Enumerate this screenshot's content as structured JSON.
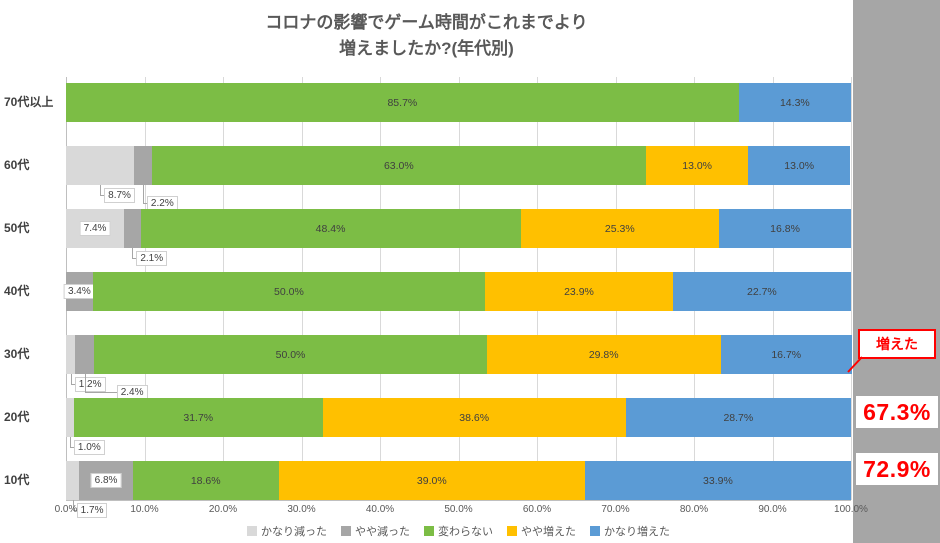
{
  "chart_data": {
    "type": "bar",
    "orientation": "horizontal",
    "stacked": true,
    "title": "コロナの影響でゲーム時間がこれまでより\n増えましたか?(年代別)",
    "xlim": [
      0,
      100
    ],
    "xticks": [
      "0.0%",
      "10.0%",
      "20.0%",
      "30.0%",
      "40.0%",
      "50.0%",
      "60.0%",
      "70.0%",
      "80.0%",
      "90.0%",
      "100.0%"
    ],
    "grid": true,
    "legend_position": "bottom",
    "legend": [
      {
        "name": "かなり減った",
        "color": "#d9d9d9"
      },
      {
        "name": "やや減った",
        "color": "#a6a6a6"
      },
      {
        "name": "変わらない",
        "color": "#7cbd45"
      },
      {
        "name": "やや増えた",
        "color": "#ffc000"
      },
      {
        "name": "かなり増えた",
        "color": "#5b9bd5"
      }
    ],
    "categories": [
      "70代以上",
      "60代",
      "50代",
      "40代",
      "30代",
      "20代",
      "10代"
    ],
    "rows": [
      {
        "category": "70代以上",
        "segments": [
          {
            "series": 2,
            "value": 85.7,
            "label": "85.7%",
            "label_mode": "inside"
          },
          {
            "series": 4,
            "value": 14.3,
            "label": "14.3%",
            "label_mode": "inside"
          }
        ]
      },
      {
        "category": "60代",
        "segments": [
          {
            "series": 0,
            "value": 8.7,
            "label": "8.7%",
            "label_mode": "callout"
          },
          {
            "series": 1,
            "value": 2.2,
            "label": "2.2%",
            "label_mode": "callout"
          },
          {
            "series": 2,
            "value": 63.0,
            "label": "63.0%",
            "label_mode": "inside"
          },
          {
            "series": 3,
            "value": 13.0,
            "label": "13.0%",
            "label_mode": "inside"
          },
          {
            "series": 4,
            "value": 13.0,
            "label": "13.0%",
            "label_mode": "inside"
          }
        ]
      },
      {
        "category": "50代",
        "segments": [
          {
            "series": 0,
            "value": 7.4,
            "label": "7.4%",
            "label_mode": "overlay"
          },
          {
            "series": 1,
            "value": 2.1,
            "label": "2.1%",
            "label_mode": "callout"
          },
          {
            "series": 2,
            "value": 48.4,
            "label": "48.4%",
            "label_mode": "inside"
          },
          {
            "series": 3,
            "value": 25.3,
            "label": "25.3%",
            "label_mode": "inside"
          },
          {
            "series": 4,
            "value": 16.8,
            "label": "16.8%",
            "label_mode": "inside"
          }
        ]
      },
      {
        "category": "40代",
        "segments": [
          {
            "series": 1,
            "value": 3.4,
            "label": "3.4%",
            "label_mode": "overlay"
          },
          {
            "series": 2,
            "value": 50.0,
            "label": "50.0%",
            "label_mode": "inside"
          },
          {
            "series": 3,
            "value": 23.9,
            "label": "23.9%",
            "label_mode": "inside"
          },
          {
            "series": 4,
            "value": 22.7,
            "label": "22.7%",
            "label_mode": "inside"
          }
        ]
      },
      {
        "category": "30代",
        "segments": [
          {
            "series": 0,
            "value": 1.2,
            "label": "1.2%",
            "label_mode": "callout"
          },
          {
            "series": 1,
            "value": 2.4,
            "label": "2.4%",
            "label_mode": "callout"
          },
          {
            "series": 2,
            "value": 50.0,
            "label": "50.0%",
            "label_mode": "inside"
          },
          {
            "series": 3,
            "value": 29.8,
            "label": "29.8%",
            "label_mode": "inside"
          },
          {
            "series": 4,
            "value": 16.7,
            "label": "16.7%",
            "label_mode": "inside"
          }
        ]
      },
      {
        "category": "20代",
        "segments": [
          {
            "series": 0,
            "value": 1.0,
            "label": "1.0%",
            "label_mode": "callout"
          },
          {
            "series": 2,
            "value": 31.7,
            "label": "31.7%",
            "label_mode": "inside"
          },
          {
            "series": 3,
            "value": 38.6,
            "label": "38.6%",
            "label_mode": "inside"
          },
          {
            "series": 4,
            "value": 28.7,
            "label": "28.7%",
            "label_mode": "inside"
          }
        ]
      },
      {
        "category": "10代",
        "segments": [
          {
            "series": 0,
            "value": 1.7,
            "label": "1.7%",
            "label_mode": "callout"
          },
          {
            "series": 1,
            "value": 6.8,
            "label": "6.8%",
            "label_mode": "overlay"
          },
          {
            "series": 2,
            "value": 18.6,
            "label": "18.6%",
            "label_mode": "inside"
          },
          {
            "series": 3,
            "value": 39.0,
            "label": "39.0%",
            "label_mode": "inside"
          },
          {
            "series": 4,
            "value": 33.9,
            "label": "33.9%",
            "label_mode": "inside"
          }
        ]
      }
    ]
  },
  "annotations": {
    "increased_box_label": "増えた",
    "increased_values": [
      {
        "category": "20代",
        "text": "67.3%"
      },
      {
        "category": "10代",
        "text": "72.9%"
      }
    ],
    "accent_color": "#ff0000"
  }
}
